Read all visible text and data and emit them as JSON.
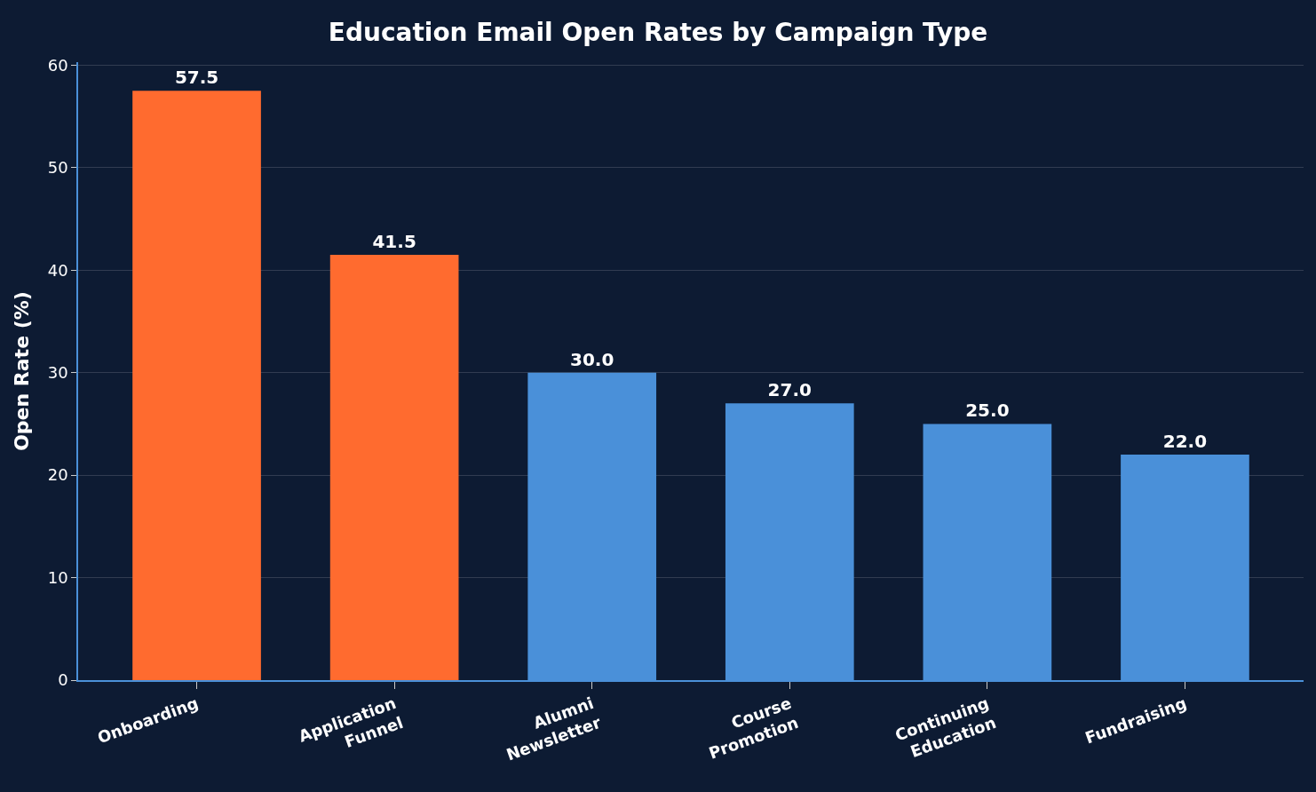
{
  "chart_data": {
    "type": "bar",
    "title": "Education Email Open Rates by Campaign Type",
    "ylabel": "Open Rate (%)",
    "categories": [
      "Onboarding",
      "Application Funnel",
      "Alumni Newsletter",
      "Course Promotion",
      "Continuing Education",
      "Fundraising"
    ],
    "values": [
      57.5,
      41.5,
      30.0,
      27.0,
      25.0,
      22.0
    ],
    "colors": [
      "#ff6b2f",
      "#ff6b2f",
      "#4a90d9",
      "#4a90d9",
      "#4a90d9",
      "#4a90d9"
    ],
    "value_labels": [
      "57.5",
      "41.5",
      "30.0",
      "27.0",
      "25.0",
      "22.0"
    ],
    "ylim": [
      0,
      60.3
    ],
    "yticks": [
      0,
      10,
      20,
      30,
      40,
      50,
      60
    ],
    "grid": "y"
  }
}
